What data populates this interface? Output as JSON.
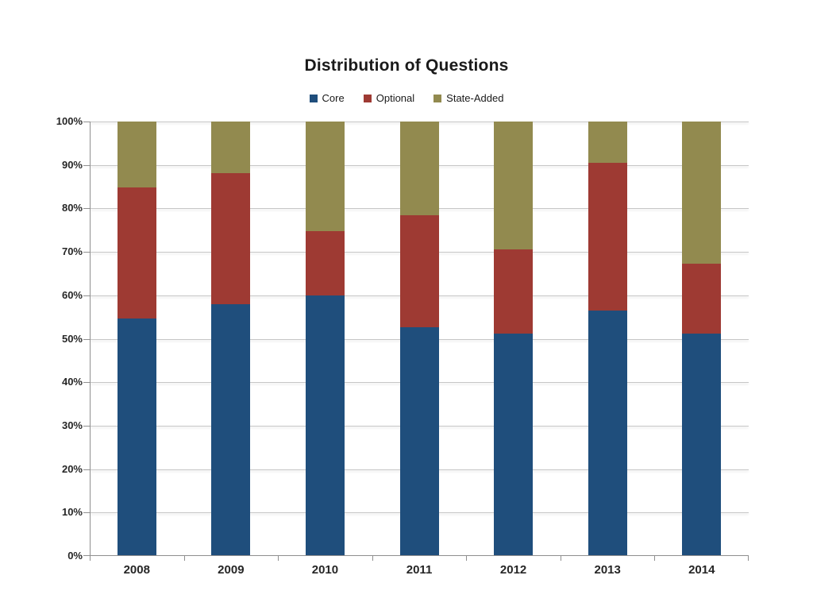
{
  "title": "Distribution of Questions",
  "legend": [
    {
      "id": "core",
      "label": "Core",
      "color": "#1F4E7C"
    },
    {
      "id": "optional",
      "label": "Optional",
      "color": "#9E3A33"
    },
    {
      "id": "state-added",
      "label": "State-Added",
      "color": "#928A4F"
    }
  ],
  "colors": {
    "core_blue": "#1F4E7C",
    "optional_red": "#9E3A33",
    "state_added_olive": "#928A4F",
    "gridline": "#c6c6c6",
    "axis": "#8f8f8f",
    "text": "#262626"
  },
  "chart_data": {
    "type": "bar",
    "stacked": true,
    "title": "Distribution of Questions",
    "xlabel": "",
    "ylabel": "",
    "categories": [
      "2008",
      "2009",
      "2010",
      "2011",
      "2012",
      "2013",
      "2014"
    ],
    "series": [
      {
        "name": "Core",
        "color": "#1F4E7C",
        "values": [
          54.6,
          57.9,
          59.9,
          52.7,
          51.2,
          56.5,
          51.2
        ]
      },
      {
        "name": "Optional",
        "color": "#9E3A33",
        "values": [
          30.2,
          30.3,
          14.9,
          25.8,
          19.3,
          34.0,
          16.1
        ]
      },
      {
        "name": "State-Added",
        "color": "#928A4F",
        "values": [
          15.2,
          11.8,
          25.2,
          21.5,
          29.5,
          9.5,
          32.7
        ]
      }
    ],
    "stack_tops": {
      "Optional_cumulative": [
        84.8,
        88.2,
        74.8,
        78.5,
        70.5,
        90.5,
        67.3
      ]
    },
    "ylim": [
      0,
      100
    ],
    "ytick_step": 10,
    "ytick_labels": [
      "0%",
      "10%",
      "20%",
      "30%",
      "40%",
      "50%",
      "60%",
      "70%",
      "80%",
      "90%",
      "100%"
    ],
    "grid": true,
    "legend_position": "top-center"
  }
}
